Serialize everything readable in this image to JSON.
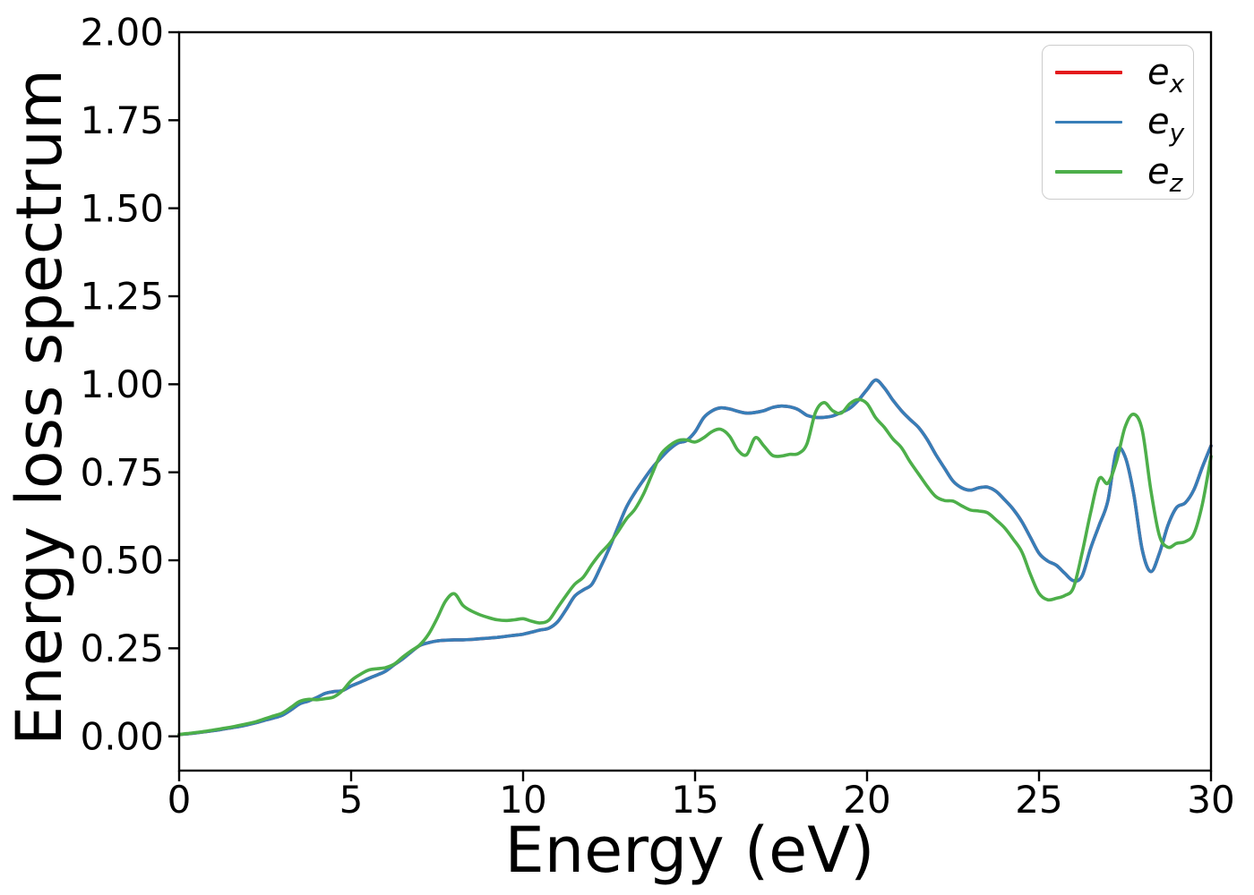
{
  "figure": {
    "xlabel": "Energy (eV)",
    "ylabel": "Energy loss spectrum",
    "background_color": "#ffffff",
    "spine_color": "#000000"
  },
  "legend": {
    "position": "upper right",
    "border_color": "#cccccc",
    "entries": [
      {
        "base": "e",
        "sub": "x",
        "color": "#e41a1c"
      },
      {
        "base": "e",
        "sub": "y",
        "color": "#377eb8"
      },
      {
        "base": "e",
        "sub": "z",
        "color": "#4daf4a"
      }
    ]
  },
  "chart_data": {
    "type": "line",
    "title": "",
    "xlabel": "Energy (eV)",
    "ylabel": "Energy loss spectrum",
    "xlim": [
      0,
      30
    ],
    "ylim": [
      -0.097,
      2.0
    ],
    "x_ticks": [
      "0",
      "5",
      "10",
      "15",
      "20",
      "25",
      "30"
    ],
    "x_tick_values": [
      0,
      5,
      10,
      15,
      20,
      25,
      30
    ],
    "y_ticks": [
      "0.00",
      "0.25",
      "0.50",
      "0.75",
      "1.00",
      "1.25",
      "1.50",
      "1.75",
      "2.00"
    ],
    "y_tick_values": [
      0.0,
      0.25,
      0.5,
      0.75,
      1.0,
      1.25,
      1.5,
      1.75,
      2.0
    ],
    "grid": false,
    "legend_position": "upper right",
    "x": [
      0,
      0.25,
      0.5,
      0.75,
      1,
      1.25,
      1.5,
      1.75,
      2,
      2.25,
      2.5,
      2.75,
      3,
      3.25,
      3.5,
      3.75,
      4,
      4.25,
      4.5,
      4.75,
      5,
      5.25,
      5.5,
      5.75,
      6,
      6.25,
      6.5,
      6.75,
      7,
      7.25,
      7.5,
      7.75,
      8,
      8.25,
      8.5,
      8.75,
      9,
      9.25,
      9.5,
      9.75,
      10,
      10.25,
      10.5,
      10.75,
      11,
      11.25,
      11.5,
      11.75,
      12,
      12.25,
      12.5,
      12.75,
      13,
      13.25,
      13.5,
      13.75,
      14,
      14.25,
      14.5,
      14.75,
      15,
      15.25,
      15.5,
      15.75,
      16,
      16.25,
      16.5,
      16.75,
      17,
      17.25,
      17.5,
      17.75,
      18,
      18.25,
      18.5,
      18.75,
      19,
      19.25,
      19.5,
      19.75,
      20,
      20.25,
      20.5,
      20.75,
      21,
      21.25,
      21.5,
      21.75,
      22,
      22.25,
      22.5,
      22.75,
      23,
      23.25,
      23.5,
      23.75,
      24,
      24.25,
      24.5,
      24.75,
      25,
      25.25,
      25.5,
      25.75,
      26,
      26.25,
      26.5,
      26.75,
      27,
      27.25,
      27.5,
      27.75,
      28,
      28.25,
      28.5,
      28.75,
      29,
      29.25,
      29.5,
      29.75,
      30
    ],
    "series": [
      {
        "name": "e_x",
        "color": "#e41a1c",
        "hidden_behind": "e_y",
        "values": [
          0.005,
          0.007,
          0.01,
          0.013,
          0.016,
          0.02,
          0.024,
          0.028,
          0.033,
          0.039,
          0.046,
          0.052,
          0.06,
          0.075,
          0.092,
          0.1,
          0.11,
          0.122,
          0.127,
          0.13,
          0.143,
          0.153,
          0.164,
          0.174,
          0.185,
          0.203,
          0.22,
          0.24,
          0.258,
          0.266,
          0.271,
          0.273,
          0.274,
          0.274,
          0.275,
          0.277,
          0.279,
          0.281,
          0.284,
          0.287,
          0.29,
          0.296,
          0.302,
          0.307,
          0.325,
          0.36,
          0.398,
          0.416,
          0.432,
          0.48,
          0.533,
          0.592,
          0.65,
          0.692,
          0.728,
          0.762,
          0.79,
          0.815,
          0.833,
          0.84,
          0.865,
          0.905,
          0.925,
          0.933,
          0.93,
          0.923,
          0.918,
          0.92,
          0.925,
          0.934,
          0.938,
          0.936,
          0.928,
          0.912,
          0.906,
          0.906,
          0.91,
          0.92,
          0.932,
          0.955,
          0.985,
          1.012,
          0.99,
          0.955,
          0.925,
          0.9,
          0.877,
          0.843,
          0.8,
          0.762,
          0.725,
          0.706,
          0.699,
          0.706,
          0.708,
          0.696,
          0.672,
          0.645,
          0.61,
          0.565,
          0.52,
          0.498,
          0.486,
          0.463,
          0.442,
          0.455,
          0.534,
          0.6,
          0.668,
          0.81,
          0.795,
          0.69,
          0.53,
          0.468,
          0.52,
          0.6,
          0.65,
          0.663,
          0.7,
          0.765,
          0.825
        ]
      },
      {
        "name": "e_y",
        "color": "#377eb8",
        "values": [
          0.005,
          0.007,
          0.01,
          0.013,
          0.016,
          0.02,
          0.024,
          0.028,
          0.033,
          0.039,
          0.046,
          0.052,
          0.06,
          0.075,
          0.092,
          0.1,
          0.11,
          0.122,
          0.127,
          0.13,
          0.143,
          0.153,
          0.164,
          0.174,
          0.185,
          0.203,
          0.22,
          0.24,
          0.258,
          0.266,
          0.271,
          0.273,
          0.274,
          0.274,
          0.275,
          0.277,
          0.279,
          0.281,
          0.284,
          0.287,
          0.29,
          0.296,
          0.302,
          0.307,
          0.325,
          0.36,
          0.398,
          0.416,
          0.432,
          0.48,
          0.533,
          0.592,
          0.65,
          0.692,
          0.728,
          0.762,
          0.79,
          0.815,
          0.833,
          0.84,
          0.865,
          0.905,
          0.925,
          0.933,
          0.93,
          0.923,
          0.918,
          0.92,
          0.925,
          0.934,
          0.938,
          0.936,
          0.928,
          0.912,
          0.906,
          0.906,
          0.91,
          0.92,
          0.932,
          0.955,
          0.985,
          1.012,
          0.99,
          0.955,
          0.925,
          0.9,
          0.877,
          0.843,
          0.8,
          0.762,
          0.725,
          0.706,
          0.699,
          0.706,
          0.708,
          0.696,
          0.672,
          0.645,
          0.61,
          0.565,
          0.52,
          0.498,
          0.486,
          0.463,
          0.442,
          0.455,
          0.534,
          0.6,
          0.668,
          0.81,
          0.795,
          0.69,
          0.53,
          0.468,
          0.52,
          0.6,
          0.65,
          0.663,
          0.7,
          0.765,
          0.825
        ]
      },
      {
        "name": "e_z",
        "color": "#4daf4a",
        "values": [
          0.005,
          0.008,
          0.011,
          0.014,
          0.018,
          0.022,
          0.026,
          0.031,
          0.036,
          0.042,
          0.05,
          0.058,
          0.066,
          0.082,
          0.099,
          0.105,
          0.104,
          0.107,
          0.112,
          0.13,
          0.158,
          0.175,
          0.188,
          0.192,
          0.195,
          0.205,
          0.225,
          0.243,
          0.26,
          0.29,
          0.335,
          0.385,
          0.405,
          0.372,
          0.356,
          0.345,
          0.337,
          0.331,
          0.329,
          0.331,
          0.334,
          0.327,
          0.322,
          0.33,
          0.365,
          0.4,
          0.432,
          0.452,
          0.488,
          0.52,
          0.546,
          0.58,
          0.617,
          0.645,
          0.688,
          0.745,
          0.8,
          0.825,
          0.84,
          0.842,
          0.836,
          0.848,
          0.866,
          0.872,
          0.853,
          0.812,
          0.8,
          0.848,
          0.825,
          0.798,
          0.796,
          0.801,
          0.803,
          0.83,
          0.92,
          0.948,
          0.925,
          0.918,
          0.945,
          0.957,
          0.945,
          0.905,
          0.878,
          0.845,
          0.82,
          0.78,
          0.745,
          0.71,
          0.681,
          0.67,
          0.668,
          0.655,
          0.643,
          0.64,
          0.635,
          0.615,
          0.592,
          0.56,
          0.524,
          0.46,
          0.406,
          0.388,
          0.392,
          0.4,
          0.422,
          0.52,
          0.635,
          0.732,
          0.719,
          0.78,
          0.878,
          0.915,
          0.87,
          0.7,
          0.57,
          0.537,
          0.548,
          0.553,
          0.575,
          0.66,
          0.795
        ]
      }
    ]
  }
}
